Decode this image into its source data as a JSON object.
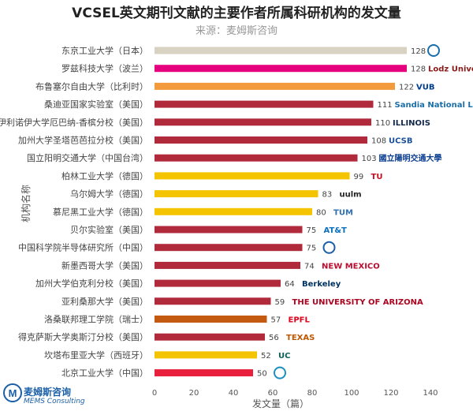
{
  "chart_data": {
    "type": "bar",
    "orientation": "horizontal",
    "title": "VCSEL英文期刊文献的主要作者所属科研机构的发文量",
    "subtitle": "来源：麦姆斯咨询",
    "xlabel": "发文量（篇）",
    "ylabel": "机构名称",
    "xlim": [
      0,
      140
    ],
    "xticks": [
      0,
      20,
      40,
      60,
      80,
      100,
      120,
      140
    ],
    "grid": false,
    "categories": [
      "东京工业大学（日本）",
      "罗兹科技大学（波兰）",
      "布鲁塞尔自由大学（比利时）",
      "桑迪亚国家实验室（美国）",
      "伊利诺伊大学厄巴纳-香槟分校（美国）",
      "加州大学圣塔芭芭拉分校（美国）",
      "国立阳明交通大学（中国台湾）",
      "柏林工业大学（德国）",
      "乌尔姆大学（德国）",
      "慕尼黑工业大学（德国）",
      "贝尔实验室（美国）",
      "中国科学院半导体研究所（中国）",
      "新墨西哥大学（美国）",
      "加州大学伯克利分校（美国）",
      "亚利桑那大学（美国）",
      "洛桑联邦理工学院（瑞士）",
      "得克萨斯大学奥斯汀分校（美国）",
      "坎塔布里亚大学（西班牙）",
      "北京工业大学（中国）"
    ],
    "values": [
      128,
      128,
      122,
      111,
      110,
      108,
      103,
      99,
      83,
      80,
      75,
      75,
      74,
      64,
      59,
      57,
      56,
      52,
      50
    ],
    "colors": [
      "#d8d2c2",
      "#e6007e",
      "#f39a3c",
      "#b02a3c",
      "#b02a3c",
      "#b02a3c",
      "#b02a3c",
      "#f5c400",
      "#f5c400",
      "#f5c400",
      "#b02a3c",
      "#b02a3c",
      "#b02a3c",
      "#b02a3c",
      "#b02a3c",
      "#c45a10",
      "#b02a3c",
      "#f5c400",
      "#e8203c"
    ],
    "institution_logos": [
      {
        "text": "",
        "color": "#1a6ea8"
      },
      {
        "text": "Lodz University of Technology",
        "color": "#8b1a1a"
      },
      {
        "text": "VUB",
        "color": "#003d8f"
      },
      {
        "text": "Sandia National Laboratories",
        "color": "#1a6ea8"
      },
      {
        "text": "ILLINOIS",
        "color": "#13294b"
      },
      {
        "text": "UCSB",
        "color": "#1a4f9a"
      },
      {
        "text": "國立陽明交通大學",
        "color": "#0a3d8f"
      },
      {
        "text": "TU",
        "color": "#c50e1f"
      },
      {
        "text": "uulm",
        "color": "#222222"
      },
      {
        "text": "TUM",
        "color": "#3070b3"
      },
      {
        "text": "AT&T",
        "color": "#0a70c0"
      },
      {
        "text": "",
        "color": "#1a5fa8"
      },
      {
        "text": "NEW MEXICO",
        "color": "#ba0c2f"
      },
      {
        "text": "Berkeley",
        "color": "#003262"
      },
      {
        "text": "THE UNIVERSITY OF ARIZONA",
        "color": "#ab0520"
      },
      {
        "text": "EPFL",
        "color": "#e2001a"
      },
      {
        "text": "TEXAS",
        "color": "#bf5700"
      },
      {
        "text": "UC",
        "color": "#0a5f55"
      },
      {
        "text": "",
        "color": "#1a8fc0"
      }
    ]
  },
  "brand": {
    "name_cn": "麦姆斯咨询",
    "name_en": "MEMS Consulting",
    "mark": "M",
    "color": "#1a5fa8"
  }
}
